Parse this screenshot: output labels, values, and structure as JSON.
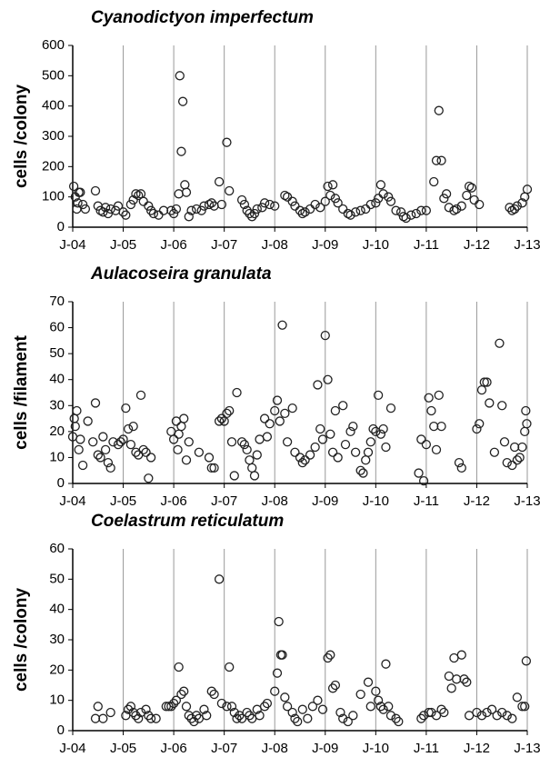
{
  "chart_data": [
    {
      "type": "scatter",
      "title": "Cyanodictyon imperfectum",
      "y_label": "cells /colony",
      "color": "#222",
      "grid": "x",
      "xlim": [
        2004,
        2013
      ],
      "xticks": [
        {
          "value": 2004,
          "label": "J-04"
        },
        {
          "value": 2005,
          "label": "J-05"
        },
        {
          "value": 2006,
          "label": "J-06"
        },
        {
          "value": 2007,
          "label": "J-07"
        },
        {
          "value": 2008,
          "label": "J-08"
        },
        {
          "value": 2009,
          "label": "J-09"
        },
        {
          "value": 2010,
          "label": "J-10"
        },
        {
          "value": 2011,
          "label": "J-11"
        },
        {
          "value": 2012,
          "label": "J-12"
        },
        {
          "value": 2013,
          "label": "J-13"
        }
      ],
      "ylim": [
        0,
        600
      ],
      "yticks": [
        0,
        100,
        200,
        300,
        400,
        500,
        600
      ],
      "x": [
        2004.02,
        2004.05,
        2004.08,
        2004.1,
        2004.12,
        2004.15,
        2004.2,
        2004.25,
        2004.45,
        2004.5,
        2004.55,
        2004.6,
        2004.65,
        2004.7,
        2004.75,
        2004.85,
        2004.9,
        2005.0,
        2005.05,
        2005.15,
        2005.2,
        2005.25,
        2005.3,
        2005.35,
        2005.4,
        2005.5,
        2005.55,
        2005.6,
        2005.7,
        2005.8,
        2005.95,
        2006.0,
        2006.05,
        2006.1,
        2006.12,
        2006.15,
        2006.18,
        2006.22,
        2006.25,
        2006.3,
        2006.35,
        2006.45,
        2006.55,
        2006.6,
        2006.7,
        2006.75,
        2006.8,
        2006.9,
        2006.95,
        2007.05,
        2007.1,
        2007.35,
        2007.4,
        2007.45,
        2007.5,
        2007.55,
        2007.6,
        2007.65,
        2007.75,
        2007.8,
        2007.9,
        2008.0,
        2008.2,
        2008.25,
        2008.35,
        2008.4,
        2008.5,
        2008.55,
        2008.6,
        2008.7,
        2008.8,
        2008.9,
        2009.0,
        2009.05,
        2009.1,
        2009.15,
        2009.2,
        2009.25,
        2009.35,
        2009.45,
        2009.5,
        2009.6,
        2009.7,
        2009.8,
        2009.9,
        2010.0,
        2010.05,
        2010.1,
        2010.15,
        2010.25,
        2010.3,
        2010.4,
        2010.5,
        2010.55,
        2010.6,
        2010.7,
        2010.8,
        2010.9,
        2011.0,
        2011.15,
        2011.2,
        2011.25,
        2011.3,
        2011.35,
        2011.4,
        2011.45,
        2011.55,
        2011.6,
        2011.7,
        2011.8,
        2011.85,
        2011.9,
        2011.95,
        2012.05,
        2012.65,
        2012.7,
        2012.75,
        2012.8,
        2012.9,
        2012.95,
        2013.0
      ],
      "values": [
        135,
        100,
        60,
        80,
        115,
        115,
        75,
        60,
        120,
        70,
        55,
        50,
        65,
        45,
        60,
        55,
        70,
        50,
        40,
        75,
        90,
        110,
        105,
        110,
        85,
        70,
        55,
        45,
        40,
        55,
        55,
        45,
        60,
        110,
        500,
        250,
        415,
        140,
        115,
        35,
        55,
        60,
        55,
        70,
        75,
        80,
        70,
        150,
        75,
        280,
        120,
        90,
        75,
        55,
        45,
        35,
        45,
        60,
        65,
        80,
        75,
        70,
        105,
        100,
        85,
        70,
        55,
        45,
        50,
        60,
        75,
        65,
        85,
        135,
        105,
        140,
        95,
        80,
        60,
        45,
        40,
        50,
        55,
        60,
        75,
        80,
        95,
        140,
        110,
        100,
        85,
        55,
        50,
        35,
        30,
        40,
        45,
        55,
        55,
        150,
        220,
        385,
        220,
        95,
        110,
        65,
        55,
        60,
        70,
        105,
        135,
        130,
        90,
        75,
        65,
        55,
        60,
        70,
        80,
        100,
        125
      ]
    },
    {
      "type": "scatter",
      "title": "Aulacoseira granulata",
      "y_label": "cells /filament",
      "color": "#222",
      "grid": "x",
      "xlim": [
        2004,
        2013
      ],
      "xticks": [
        {
          "value": 2004,
          "label": "J-04"
        },
        {
          "value": 2005,
          "label": "J-05"
        },
        {
          "value": 2006,
          "label": "J-06"
        },
        {
          "value": 2007,
          "label": "J-07"
        },
        {
          "value": 2008,
          "label": "J-08"
        },
        {
          "value": 2009,
          "label": "J-09"
        },
        {
          "value": 2010,
          "label": "J-10"
        },
        {
          "value": 2011,
          "label": "J-11"
        },
        {
          "value": 2012,
          "label": "J-12"
        },
        {
          "value": 2013,
          "label": "J-13"
        }
      ],
      "ylim": [
        0,
        70
      ],
      "yticks": [
        0,
        10,
        20,
        30,
        40,
        50,
        60,
        70
      ],
      "x": [
        2004.0,
        2004.03,
        2004.05,
        2004.08,
        2004.12,
        2004.15,
        2004.2,
        2004.3,
        2004.4,
        2004.45,
        2004.5,
        2004.55,
        2004.6,
        2004.65,
        2004.7,
        2004.75,
        2004.8,
        2004.9,
        2004.95,
        2005.0,
        2005.05,
        2005.1,
        2005.15,
        2005.2,
        2005.25,
        2005.3,
        2005.35,
        2005.4,
        2005.45,
        2005.5,
        2005.55,
        2005.95,
        2006.0,
        2006.05,
        2006.08,
        2006.1,
        2006.15,
        2006.2,
        2006.25,
        2006.3,
        2006.5,
        2006.7,
        2006.75,
        2006.8,
        2006.9,
        2006.95,
        2007.0,
        2007.05,
        2007.1,
        2007.15,
        2007.2,
        2007.25,
        2007.35,
        2007.4,
        2007.45,
        2007.5,
        2007.55,
        2007.6,
        2007.65,
        2007.7,
        2007.8,
        2007.85,
        2007.9,
        2008.0,
        2008.05,
        2008.1,
        2008.15,
        2008.2,
        2008.25,
        2008.35,
        2008.4,
        2008.5,
        2008.55,
        2008.6,
        2008.7,
        2008.8,
        2008.85,
        2008.9,
        2008.95,
        2009.0,
        2009.05,
        2009.1,
        2009.15,
        2009.2,
        2009.25,
        2009.35,
        2009.4,
        2009.5,
        2009.55,
        2009.6,
        2009.7,
        2009.75,
        2009.8,
        2009.85,
        2009.9,
        2009.95,
        2010.0,
        2010.05,
        2010.1,
        2010.15,
        2010.2,
        2010.3,
        2010.85,
        2010.9,
        2010.95,
        2011.0,
        2011.05,
        2011.1,
        2011.15,
        2011.2,
        2011.25,
        2011.3,
        2011.65,
        2011.7,
        2012.0,
        2012.05,
        2012.1,
        2012.15,
        2012.2,
        2012.25,
        2012.35,
        2012.45,
        2012.5,
        2012.55,
        2012.6,
        2012.7,
        2012.75,
        2012.8,
        2012.85,
        2012.9,
        2012.95,
        2012.97,
        2012.99
      ],
      "values": [
        18,
        25,
        22,
        28,
        13,
        17,
        7,
        24,
        16,
        31,
        11,
        10,
        18,
        13,
        8,
        6,
        16,
        15,
        16,
        17,
        29,
        21,
        15,
        22,
        12,
        11,
        34,
        13,
        12,
        2,
        10,
        20,
        17,
        24,
        13,
        19,
        22,
        25,
        9,
        16,
        12,
        10,
        6,
        6,
        24,
        25,
        24,
        27,
        28,
        16,
        3,
        35,
        16,
        15,
        13,
        9,
        6,
        3,
        11,
        17,
        25,
        18,
        23,
        28,
        32,
        24,
        61,
        27,
        16,
        29,
        12,
        10,
        8,
        9,
        11,
        14,
        38,
        21,
        17,
        57,
        40,
        19,
        12,
        28,
        10,
        30,
        15,
        20,
        22,
        12,
        5,
        4,
        9,
        12,
        16,
        21,
        20,
        34,
        19,
        21,
        14,
        29,
        4,
        17,
        1,
        15,
        33,
        28,
        22,
        13,
        34,
        22,
        8,
        6,
        21,
        23,
        36,
        39,
        39,
        31,
        12,
        54,
        30,
        16,
        8,
        7,
        14,
        9,
        10,
        14,
        20,
        28,
        23
      ]
    },
    {
      "type": "scatter",
      "title": "Coelastrum reticulatum",
      "y_label": "cells /colony",
      "color": "#222",
      "grid": "x",
      "xlim": [
        2004,
        2013
      ],
      "xticks": [
        {
          "value": 2004,
          "label": "J-04"
        },
        {
          "value": 2005,
          "label": "J-05"
        },
        {
          "value": 2006,
          "label": "J-06"
        },
        {
          "value": 2007,
          "label": "J-07"
        },
        {
          "value": 2008,
          "label": "J-08"
        },
        {
          "value": 2009,
          "label": "J-09"
        },
        {
          "value": 2010,
          "label": "J-10"
        },
        {
          "value": 2011,
          "label": "J-11"
        },
        {
          "value": 2012,
          "label": "J-12"
        },
        {
          "value": 2013,
          "label": "J-13"
        }
      ],
      "ylim": [
        0,
        60
      ],
      "yticks": [
        0,
        10,
        20,
        30,
        40,
        50,
        60
      ],
      "x": [
        2004.45,
        2004.5,
        2004.6,
        2004.75,
        2005.05,
        2005.1,
        2005.15,
        2005.2,
        2005.25,
        2005.3,
        2005.35,
        2005.45,
        2005.5,
        2005.55,
        2005.65,
        2005.85,
        2005.9,
        2005.95,
        2006.0,
        2006.05,
        2006.1,
        2006.15,
        2006.2,
        2006.25,
        2006.3,
        2006.35,
        2006.4,
        2006.45,
        2006.5,
        2006.6,
        2006.65,
        2006.75,
        2006.8,
        2006.9,
        2006.95,
        2007.05,
        2007.1,
        2007.15,
        2007.2,
        2007.25,
        2007.3,
        2007.35,
        2007.45,
        2007.5,
        2007.55,
        2007.65,
        2007.7,
        2007.8,
        2007.85,
        2008.0,
        2008.05,
        2008.08,
        2008.12,
        2008.15,
        2008.2,
        2008.25,
        2008.35,
        2008.4,
        2008.45,
        2008.55,
        2008.65,
        2008.75,
        2008.85,
        2008.95,
        2009.05,
        2009.1,
        2009.15,
        2009.2,
        2009.3,
        2009.35,
        2009.45,
        2009.55,
        2009.7,
        2009.85,
        2009.9,
        2010.0,
        2010.05,
        2010.1,
        2010.15,
        2010.2,
        2010.25,
        2010.3,
        2010.4,
        2010.45,
        2010.9,
        2010.95,
        2011.05,
        2011.1,
        2011.2,
        2011.3,
        2011.35,
        2011.45,
        2011.5,
        2011.55,
        2011.6,
        2011.7,
        2011.75,
        2011.8,
        2011.85,
        2012.0,
        2012.1,
        2012.2,
        2012.3,
        2012.4,
        2012.5,
        2012.6,
        2012.7,
        2012.8,
        2012.9,
        2012.95,
        2012.98
      ],
      "values": [
        4,
        8,
        4,
        6,
        5,
        7,
        8,
        6,
        5,
        4,
        6,
        7,
        5,
        4,
        4,
        8,
        8,
        8,
        9,
        10,
        21,
        12,
        13,
        8,
        5,
        4,
        3,
        5,
        4,
        7,
        5,
        13,
        12,
        50,
        9,
        8,
        21,
        8,
        6,
        4,
        5,
        4,
        6,
        5,
        4,
        7,
        5,
        8,
        9,
        13,
        19,
        36,
        25,
        25,
        11,
        8,
        6,
        4,
        3,
        7,
        4,
        8,
        10,
        7,
        24,
        25,
        14,
        15,
        6,
        4,
        3,
        5,
        12,
        16,
        8,
        13,
        10,
        8,
        7,
        22,
        8,
        5,
        4,
        3,
        4,
        5,
        6,
        6,
        5,
        7,
        6,
        18,
        14,
        24,
        17,
        25,
        17,
        16,
        5,
        6,
        5,
        6,
        7,
        5,
        6,
        5,
        4,
        11,
        8,
        8,
        23
      ]
    }
  ]
}
